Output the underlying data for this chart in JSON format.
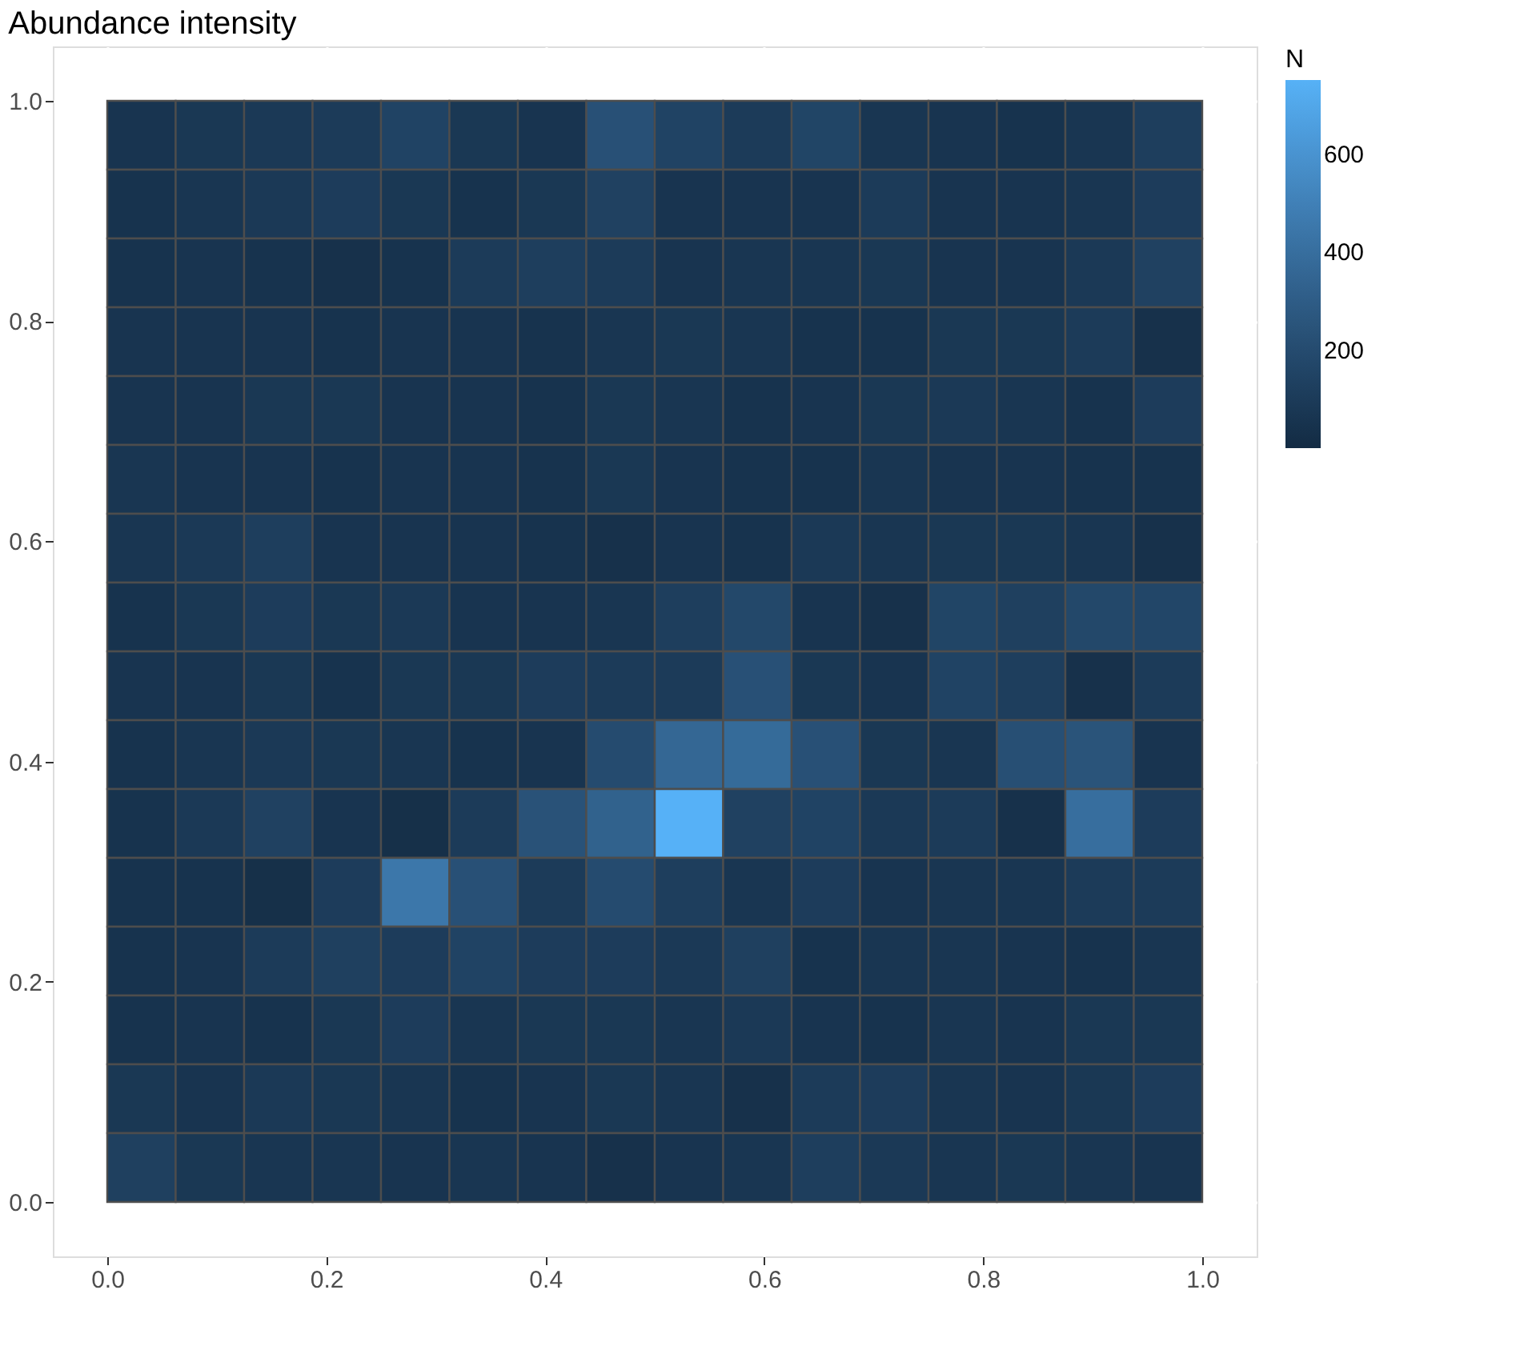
{
  "chart_data": {
    "type": "heatmap",
    "title": "Abundance intensity",
    "x": [
      0.03125,
      0.09375,
      0.15625,
      0.21875,
      0.28125,
      0.34375,
      0.40625,
      0.46875,
      0.53125,
      0.59375,
      0.65625,
      0.71875,
      0.78125,
      0.84375,
      0.90625,
      0.96875
    ],
    "cells": [
      [
        60,
        80,
        90,
        100,
        150,
        80,
        60,
        230,
        150,
        100,
        160,
        70,
        60,
        50,
        70,
        120
      ],
      [
        50,
        70,
        90,
        110,
        80,
        50,
        80,
        140,
        60,
        60,
        60,
        100,
        60,
        60,
        70,
        110
      ],
      [
        50,
        60,
        50,
        40,
        50,
        100,
        120,
        100,
        60,
        70,
        70,
        80,
        60,
        60,
        90,
        140
      ],
      [
        60,
        60,
        60,
        50,
        60,
        60,
        50,
        70,
        80,
        70,
        50,
        50,
        80,
        80,
        100,
        40
      ],
      [
        60,
        60,
        80,
        80,
        60,
        60,
        50,
        80,
        70,
        50,
        60,
        80,
        90,
        70,
        50,
        110
      ],
      [
        70,
        60,
        60,
        50,
        60,
        60,
        50,
        80,
        60,
        50,
        50,
        70,
        60,
        60,
        50,
        50
      ],
      [
        70,
        90,
        120,
        60,
        60,
        60,
        50,
        40,
        60,
        50,
        90,
        70,
        80,
        80,
        70,
        40
      ],
      [
        50,
        80,
        110,
        80,
        90,
        60,
        60,
        70,
        120,
        180,
        60,
        40,
        160,
        130,
        180,
        170
      ],
      [
        60,
        60,
        80,
        50,
        80,
        80,
        110,
        100,
        100,
        230,
        80,
        60,
        150,
        120,
        40,
        100
      ],
      [
        50,
        70,
        90,
        80,
        70,
        50,
        60,
        200,
        360,
        380,
        230,
        80,
        70,
        220,
        250,
        60
      ],
      [
        50,
        90,
        140,
        60,
        30,
        100,
        240,
        330,
        752,
        140,
        150,
        90,
        100,
        40,
        400,
        110
      ],
      [
        50,
        50,
        30,
        110,
        450,
        230,
        100,
        200,
        120,
        70,
        110,
        60,
        70,
        70,
        100,
        100
      ],
      [
        50,
        60,
        100,
        130,
        110,
        150,
        110,
        110,
        90,
        130,
        50,
        70,
        70,
        60,
        50,
        70
      ],
      [
        50,
        60,
        50,
        80,
        110,
        70,
        80,
        80,
        70,
        90,
        60,
        50,
        70,
        60,
        80,
        80
      ],
      [
        80,
        60,
        90,
        80,
        70,
        50,
        60,
        80,
        70,
        40,
        100,
        110,
        70,
        60,
        80,
        110
      ],
      [
        130,
        80,
        70,
        70,
        60,
        70,
        60,
        40,
        60,
        70,
        120,
        90,
        70,
        80,
        70,
        60
      ]
    ],
    "xlim": [
      0,
      1
    ],
    "ylim": [
      0,
      1
    ],
    "xticks": [
      {
        "value": 0,
        "label": "0.0"
      },
      0.2,
      0.4,
      0.6,
      0.8,
      {
        "value": 1,
        "label": "1.0"
      }
    ],
    "yticks": [
      {
        "value": 0,
        "label": "0.0"
      },
      0.2,
      0.4,
      0.6,
      0.8,
      {
        "value": 1,
        "label": "1.0"
      }
    ],
    "legend_title": "N",
    "clim": [
      0,
      752
    ],
    "cticks": [
      200,
      400,
      600
    ],
    "colors": [
      "#132b43",
      "#56b1f7"
    ],
    "grid": true
  }
}
